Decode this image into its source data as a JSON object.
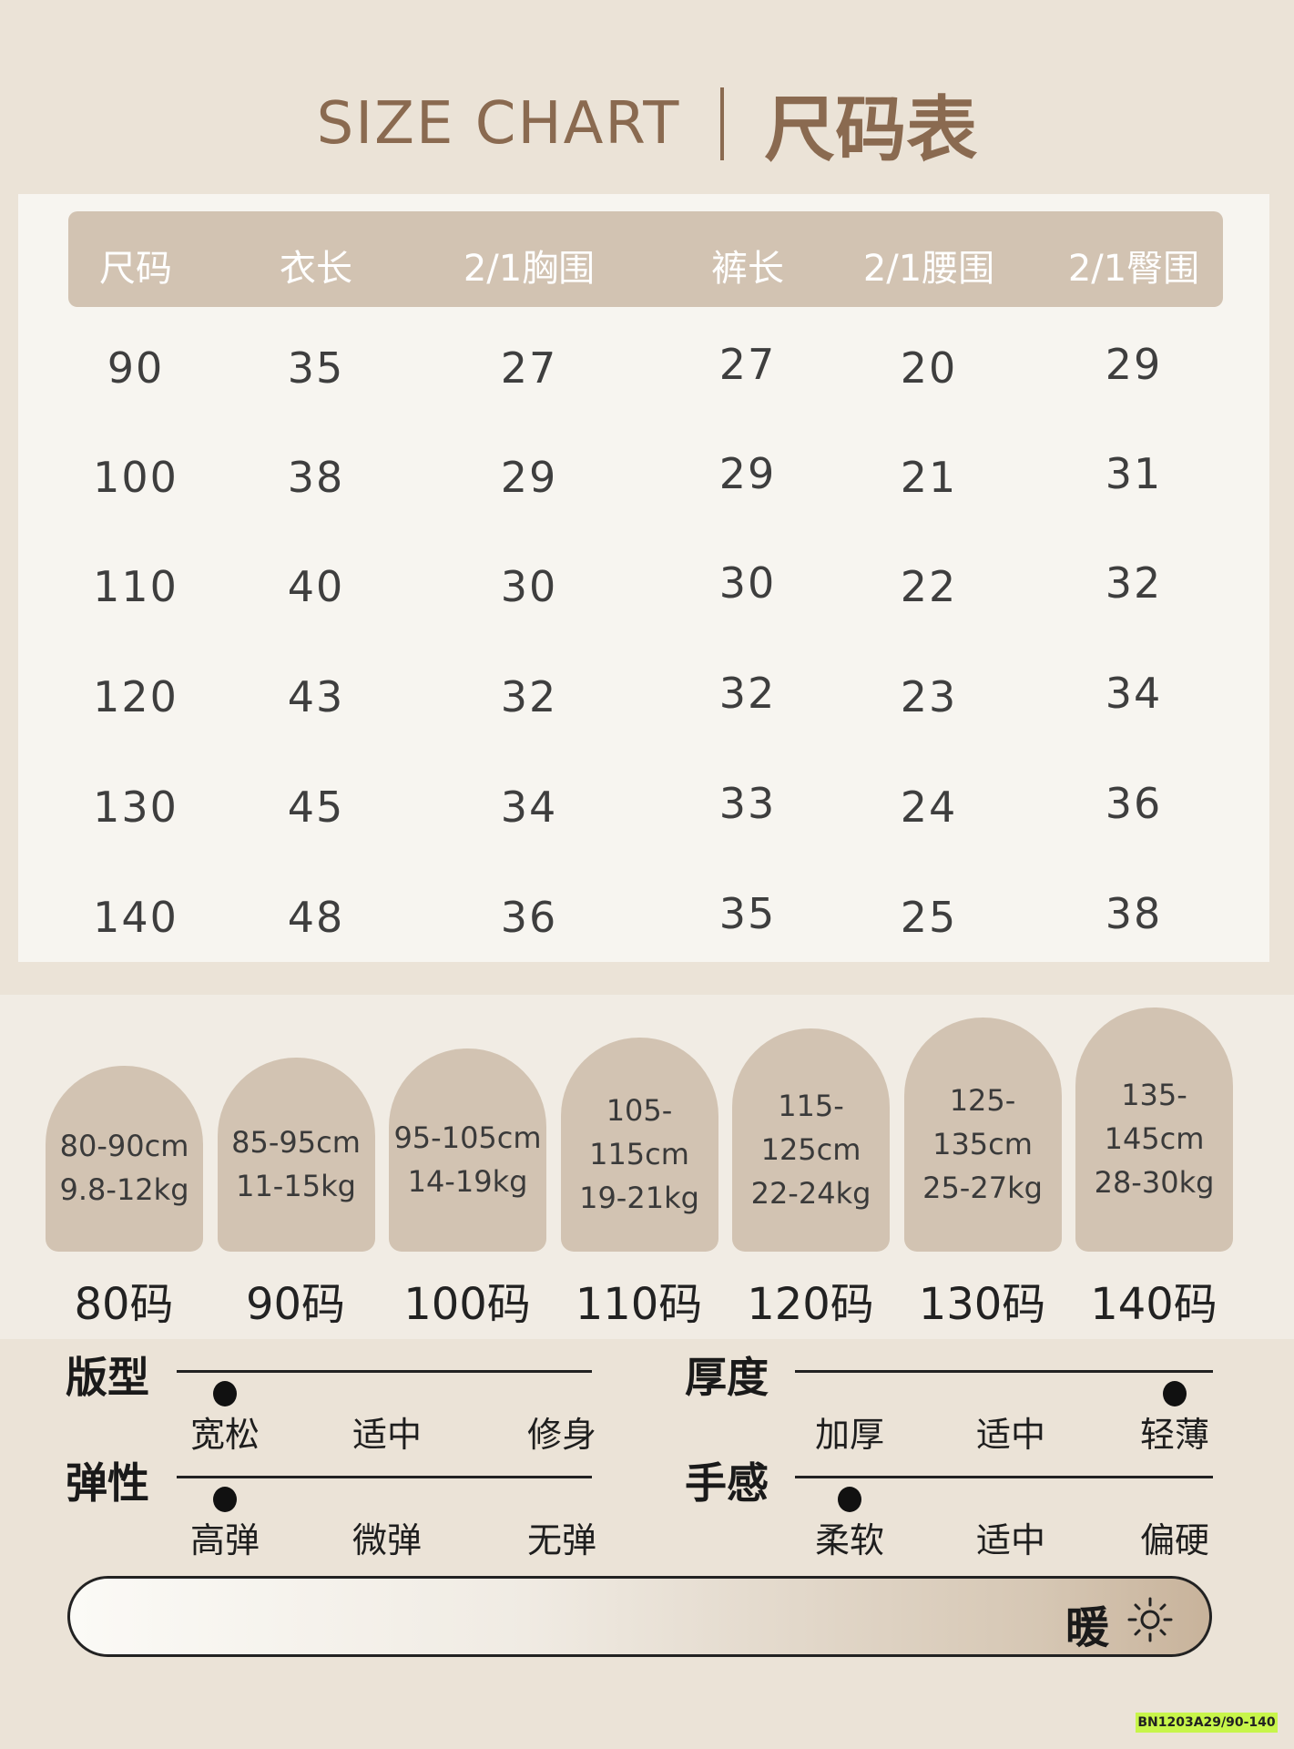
{
  "title": {
    "en": "SIZE CHART",
    "cn": "尺码表"
  },
  "table": {
    "headers": [
      "尺码",
      "衣长",
      "2/1胸围",
      "裤长",
      "2/1腰围",
      "2/1臀围"
    ],
    "rows": [
      [
        "90",
        "35",
        "27",
        "27",
        "20",
        "29"
      ],
      [
        "100",
        "38",
        "29",
        "29",
        "21",
        "31"
      ],
      [
        "110",
        "40",
        "30",
        "30",
        "22",
        "32"
      ],
      [
        "120",
        "43",
        "32",
        "32",
        "23",
        "34"
      ],
      [
        "130",
        "45",
        "34",
        "33",
        "24",
        "36"
      ],
      [
        "140",
        "48",
        "36",
        "35",
        "25",
        "38"
      ]
    ]
  },
  "size_guide": [
    {
      "height": "80-90cm",
      "weight": "9.8-12kg",
      "code": "80码"
    },
    {
      "height": "85-95cm",
      "weight": "11-15kg",
      "code": "90码"
    },
    {
      "height": "95-105cm",
      "weight": "14-19kg",
      "code": "100码"
    },
    {
      "height": "105-115cm",
      "weight": "19-21kg",
      "code": "110码"
    },
    {
      "height": "115-125cm",
      "weight": "22-24kg",
      "code": "120码"
    },
    {
      "height": "125-135cm",
      "weight": "25-27kg",
      "code": "130码"
    },
    {
      "height": "135-145cm",
      "weight": "28-30kg",
      "code": "140码"
    }
  ],
  "features": [
    {
      "label": "版型",
      "options": [
        "宽松",
        "适中",
        "修身"
      ],
      "selected_index": 0
    },
    {
      "label": "厚度",
      "options": [
        "加厚",
        "适中",
        "轻薄"
      ],
      "selected_index": 2
    },
    {
      "label": "弹性",
      "options": [
        "高弹",
        "微弹",
        "无弹"
      ],
      "selected_index": 0
    },
    {
      "label": "手感",
      "options": [
        "柔软",
        "适中",
        "偏硬"
      ],
      "selected_index": 0
    }
  ],
  "warmth": {
    "label": "暖",
    "icon": "sun-icon",
    "level_percent": 100
  },
  "badge": "BN1203A29/90-140",
  "colors": {
    "accent": "#8a6a50",
    "header_bg": "#d2c3b2",
    "background": "#ebe3d7",
    "badge": "#c7f54a"
  }
}
